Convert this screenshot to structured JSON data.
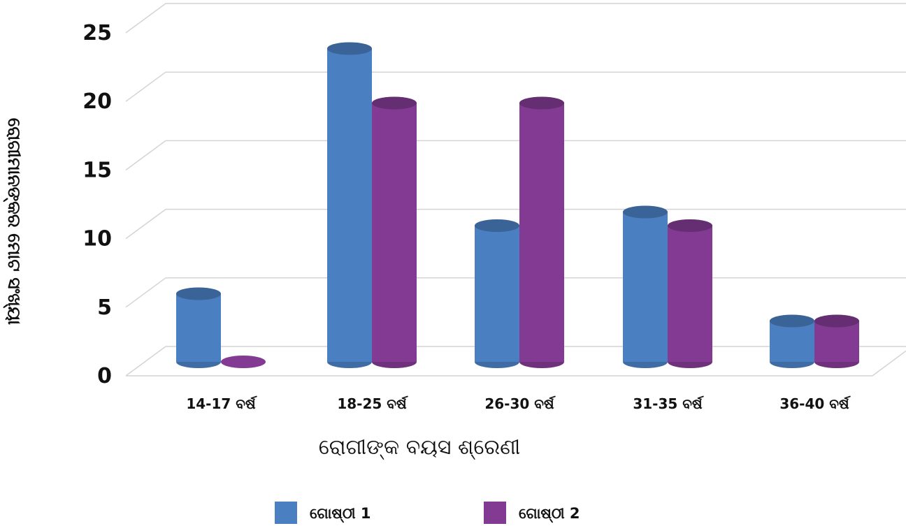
{
  "chart_data": {
    "type": "bar",
    "title": "",
    "xlabel": "ରୋଗୀଙ୍କ ବୟସ ଶ୍ରେଣୀ",
    "ylabel": "ରୋଗୀମାନଙ୍କର ମୋଟ ସଂଖ୍ୟା",
    "ylim": [
      0,
      25
    ],
    "yticks": [
      "0",
      "5",
      "10",
      "15",
      "20",
      "25"
    ],
    "categories": [
      "14-17 ବର୍ଷ",
      "18-25 ବର୍ଷ",
      "26-30 ବର୍ଷ",
      "31-35 ବର୍ଷ",
      "36-40 ବର୍ଷ"
    ],
    "series": [
      {
        "name": "ଗୋଷ୍ଠୀ 1",
        "color": "#4a7fc1",
        "values": [
          5,
          23,
          10,
          11,
          3
        ]
      },
      {
        "name": "ଗୋଷ୍ଠୀ 2",
        "color": "#823a92",
        "values": [
          0,
          19,
          19,
          10,
          3
        ]
      }
    ],
    "grid": true,
    "legend": "bottom-center"
  }
}
